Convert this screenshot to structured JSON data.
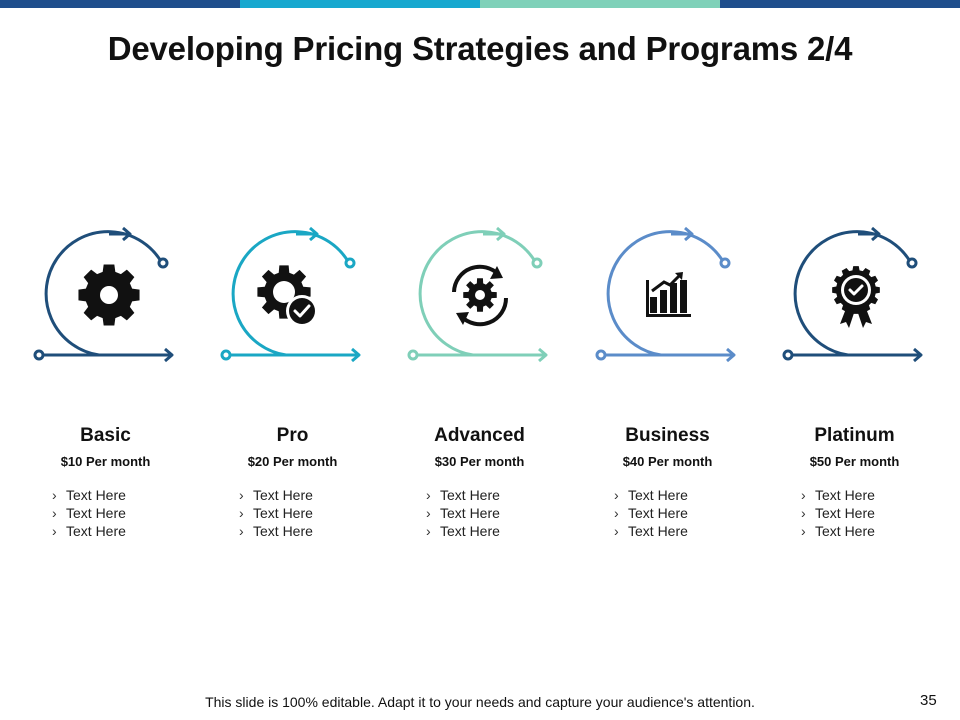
{
  "slide": {
    "title": "Developing Pricing Strategies and Programs 2/4",
    "footer_note": "This slide is 100% editable. Adapt it to your needs and capture your audience's attention.",
    "page_number": "35",
    "top_bar_colors": [
      "#1f4e8c",
      "#17a8cf",
      "#7fd1b9",
      "#1f4e8c"
    ]
  },
  "plans": [
    {
      "name": "Basic",
      "price": "$10 Per month",
      "color": "#1f4e7a",
      "icon": "gear-icon",
      "features": [
        "Text Here",
        "Text Here",
        "Text Here"
      ]
    },
    {
      "name": "Pro",
      "price": "$20 Per month",
      "color": "#1aa7c4",
      "icon": "gear-check-icon",
      "features": [
        "Text Here",
        "Text Here",
        "Text Here"
      ]
    },
    {
      "name": "Advanced",
      "price": "$30 Per month",
      "color": "#7fcfb8",
      "icon": "gear-refresh-icon",
      "features": [
        "Text Here",
        "Text Here",
        "Text Here"
      ]
    },
    {
      "name": "Business",
      "price": "$40 Per month",
      "color": "#5b8cc9",
      "icon": "growth-chart-icon",
      "features": [
        "Text Here",
        "Text Here",
        "Text Here"
      ]
    },
    {
      "name": "Platinum",
      "price": "$50 Per month",
      "color": "#1f4e7a",
      "icon": "award-badge-icon",
      "features": [
        "Text Here",
        "Text Here",
        "Text Here"
      ]
    }
  ]
}
